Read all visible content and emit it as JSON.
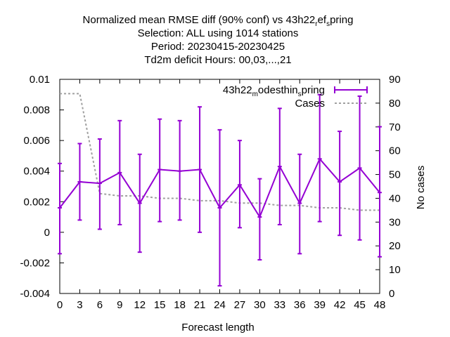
{
  "chart_data": {
    "type": "line",
    "title_lines": [
      "Normalized mean RMSE diff (90% conf) vs 43h22_ref_spring",
      "Selection: ALL using  1014 stations",
      "Period: 20230415-20230425",
      "Td2m deficit   Hours:  00,03,...,21"
    ],
    "xlabel": "Forecast length",
    "ylabel": "",
    "y2label": "No cases",
    "x": [
      0,
      3,
      6,
      9,
      12,
      15,
      18,
      21,
      24,
      27,
      30,
      33,
      36,
      39,
      42,
      45,
      48
    ],
    "xlim": [
      0,
      48
    ],
    "ylim": [
      -0.004,
      0.01
    ],
    "y2lim": [
      0,
      90
    ],
    "xticks": [
      "0",
      "3",
      "6",
      "9",
      "12",
      "15",
      "18",
      "21",
      "24",
      "27",
      "30",
      "33",
      "36",
      "39",
      "42",
      "45",
      "48"
    ],
    "yticks": [
      "-0.004",
      "-0.002",
      "0",
      "0.002",
      "0.004",
      "0.006",
      "0.008",
      "0.01"
    ],
    "y2ticks": [
      "0",
      "10",
      "20",
      "30",
      "40",
      "50",
      "60",
      "70",
      "80",
      "90"
    ],
    "series": [
      {
        "name": "43h22_modesthin_spring",
        "axis": "y",
        "color": "#9400d3",
        "values": [
          0.0016,
          0.0033,
          0.0032,
          0.0039,
          0.0019,
          0.0041,
          0.004,
          0.0041,
          0.0016,
          0.0031,
          0.001,
          0.0043,
          0.0019,
          0.0048,
          0.0033,
          0.0042,
          0.0026
        ],
        "err_low": [
          -0.0014,
          0.0008,
          0.0002,
          0.0005,
          -0.0013,
          0.0007,
          0.0008,
          0.0,
          -0.0035,
          0.0003,
          -0.0018,
          0.0005,
          -0.0014,
          0.0007,
          -0.0002,
          -0.0005,
          -0.0016
        ],
        "err_high": [
          0.0045,
          0.0058,
          0.0061,
          0.0073,
          0.0051,
          0.0074,
          0.0073,
          0.0082,
          0.0067,
          0.006,
          0.0035,
          0.0081,
          0.0051,
          0.009,
          0.0066,
          0.0089,
          0.0069
        ]
      },
      {
        "name": "Cases",
        "axis": "y2",
        "color": "#a0a0a0",
        "values": [
          84,
          84,
          42,
          41,
          41,
          40,
          40,
          39,
          39,
          38,
          38,
          37,
          37,
          36,
          36,
          35,
          35
        ]
      }
    ],
    "legend_position": "top-right",
    "grid": false
  }
}
